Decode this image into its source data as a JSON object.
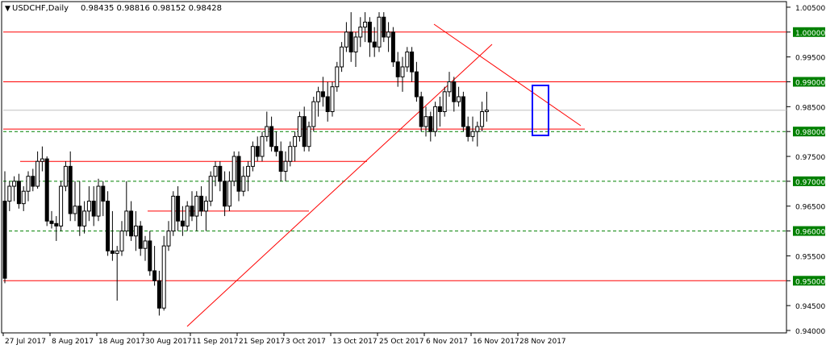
{
  "header": {
    "symbol_timeframe": "USDCHF,Daily",
    "ohlc": "0.98435 0.98816 0.98152 0.98428"
  },
  "colors": {
    "bull_body": "#ffffff",
    "bear_body": "#000000",
    "wick": "#000000",
    "red_line": "#ff0000",
    "green_dash": "#008000",
    "green_tag": "#008000",
    "blue_box": "#0000ff",
    "grid": "#c0c0c0"
  },
  "chart_data": {
    "type": "candlestick",
    "title": "USDCHF,Daily",
    "y_axis_side": "right",
    "ylim": [
      0.94,
      1.0058
    ],
    "y_ticks": [
      {
        "value": 1.005,
        "label": "1.00500"
      },
      {
        "value": 1.0,
        "label": "1.00000",
        "tag": "green"
      },
      {
        "value": 0.995,
        "label": "0.99500"
      },
      {
        "value": 0.99,
        "label": "0.99000",
        "tag": "green"
      },
      {
        "value": 0.985,
        "label": "0.98500"
      },
      {
        "value": 0.98,
        "label": "0.98000",
        "tag": "green"
      },
      {
        "value": 0.975,
        "label": "0.97500"
      },
      {
        "value": 0.97,
        "label": "0.97000",
        "tag": "green"
      },
      {
        "value": 0.965,
        "label": "0.96500"
      },
      {
        "value": 0.96,
        "label": "0.96000",
        "tag": "green"
      },
      {
        "value": 0.955,
        "label": "0.95500"
      },
      {
        "value": 0.95,
        "label": "0.95000",
        "tag": "green"
      },
      {
        "value": 0.945,
        "label": "0.94500"
      },
      {
        "value": 0.94,
        "label": "0.94000"
      }
    ],
    "x_labels": [
      {
        "index": 0,
        "label": "27 Jul 2017"
      },
      {
        "index": 10,
        "label": "8 Aug 2017"
      },
      {
        "index": 20,
        "label": "18 Aug 2017"
      },
      {
        "index": 30,
        "label": "30 Aug 2017"
      },
      {
        "index": 40,
        "label": "11 Sep 2017"
      },
      {
        "index": 50,
        "label": "21 Sep 2017"
      },
      {
        "index": 60,
        "label": "3 Oct 2017"
      },
      {
        "index": 70,
        "label": "13 Oct 2017"
      },
      {
        "index": 80,
        "label": "25 Oct 2017"
      },
      {
        "index": 90,
        "label": "6 Nov 2017"
      },
      {
        "index": 100,
        "label": "16 Nov 2017"
      },
      {
        "index": 110,
        "label": "28 Nov 2017"
      }
    ],
    "candles": [
      [
        0.966,
        0.972,
        0.9495,
        0.9505
      ],
      [
        0.966,
        0.97,
        0.964,
        0.969
      ],
      [
        0.969,
        0.971,
        0.966,
        0.97
      ],
      [
        0.97,
        0.9715,
        0.9645,
        0.9655
      ],
      [
        0.9655,
        0.969,
        0.964,
        0.968
      ],
      [
        0.968,
        0.972,
        0.966,
        0.971
      ],
      [
        0.971,
        0.9725,
        0.968,
        0.969
      ],
      [
        0.969,
        0.976,
        0.9685,
        0.974
      ],
      [
        0.974,
        0.977,
        0.972,
        0.9745
      ],
      [
        0.9745,
        0.975,
        0.961,
        0.962
      ],
      [
        0.962,
        0.964,
        0.9605,
        0.9615
      ],
      [
        0.9615,
        0.963,
        0.958,
        0.961
      ],
      [
        0.961,
        0.97,
        0.96,
        0.969
      ],
      [
        0.969,
        0.974,
        0.968,
        0.973
      ],
      [
        0.973,
        0.976,
        0.962,
        0.9635
      ],
      [
        0.9635,
        0.97,
        0.962,
        0.965
      ],
      [
        0.965,
        0.97,
        0.959,
        0.961
      ],
      [
        0.961,
        0.966,
        0.9595,
        0.964
      ],
      [
        0.964,
        0.969,
        0.962,
        0.966
      ],
      [
        0.966,
        0.969,
        0.961,
        0.963
      ],
      [
        0.963,
        0.9705,
        0.962,
        0.969
      ],
      [
        0.969,
        0.97,
        0.963,
        0.966
      ],
      [
        0.966,
        0.968,
        0.955,
        0.956
      ],
      [
        0.956,
        0.964,
        0.954,
        0.9555
      ],
      [
        0.9555,
        0.957,
        0.946,
        0.956
      ],
      [
        0.956,
        0.962,
        0.955,
        0.96
      ],
      [
        0.96,
        0.97,
        0.959,
        0.964
      ],
      [
        0.964,
        0.966,
        0.958,
        0.959
      ],
      [
        0.959,
        0.964,
        0.956,
        0.961
      ],
      [
        0.961,
        0.962,
        0.955,
        0.9565
      ],
      [
        0.9565,
        0.959,
        0.954,
        0.958
      ],
      [
        0.958,
        0.96,
        0.951,
        0.952
      ],
      [
        0.952,
        0.957,
        0.949,
        0.95
      ],
      [
        0.95,
        0.952,
        0.943,
        0.9445
      ],
      [
        0.9445,
        0.959,
        0.944,
        0.957
      ],
      [
        0.957,
        0.962,
        0.956,
        0.96
      ],
      [
        0.96,
        0.968,
        0.959,
        0.967
      ],
      [
        0.967,
        0.969,
        0.96,
        0.962
      ],
      [
        0.962,
        0.965,
        0.959,
        0.961
      ],
      [
        0.961,
        0.966,
        0.96,
        0.965
      ],
      [
        0.965,
        0.968,
        0.962,
        0.963
      ],
      [
        0.963,
        0.968,
        0.96,
        0.967
      ],
      [
        0.967,
        0.969,
        0.963,
        0.964
      ],
      [
        0.964,
        0.967,
        0.96,
        0.966
      ],
      [
        0.966,
        0.972,
        0.965,
        0.971
      ],
      [
        0.971,
        0.974,
        0.969,
        0.973
      ],
      [
        0.973,
        0.974,
        0.968,
        0.97
      ],
      [
        0.97,
        0.972,
        0.963,
        0.965
      ],
      [
        0.965,
        0.972,
        0.964,
        0.97
      ],
      [
        0.97,
        0.976,
        0.969,
        0.975
      ],
      [
        0.975,
        0.976,
        0.966,
        0.968
      ],
      [
        0.968,
        0.973,
        0.967,
        0.971
      ],
      [
        0.971,
        0.974,
        0.968,
        0.973
      ],
      [
        0.973,
        0.978,
        0.972,
        0.977
      ],
      [
        0.977,
        0.979,
        0.974,
        0.975
      ],
      [
        0.975,
        0.98,
        0.974,
        0.979
      ],
      [
        0.979,
        0.984,
        0.978,
        0.981
      ],
      [
        0.981,
        0.983,
        0.976,
        0.977
      ],
      [
        0.977,
        0.98,
        0.975,
        0.976
      ],
      [
        0.976,
        0.978,
        0.97,
        0.972
      ],
      [
        0.972,
        0.976,
        0.97,
        0.974
      ],
      [
        0.974,
        0.978,
        0.973,
        0.977
      ],
      [
        0.977,
        0.98,
        0.974,
        0.979
      ],
      [
        0.979,
        0.984,
        0.978,
        0.983
      ],
      [
        0.983,
        0.985,
        0.976,
        0.977
      ],
      [
        0.977,
        0.982,
        0.976,
        0.981
      ],
      [
        0.981,
        0.987,
        0.98,
        0.986
      ],
      [
        0.986,
        0.989,
        0.983,
        0.988
      ],
      [
        0.988,
        0.991,
        0.985,
        0.987
      ],
      [
        0.987,
        0.99,
        0.982,
        0.984
      ],
      [
        0.984,
        0.99,
        0.983,
        0.989
      ],
      [
        0.989,
        0.994,
        0.988,
        0.993
      ],
      [
        0.993,
        0.998,
        0.992,
        0.997
      ],
      [
        0.997,
        1.002,
        0.996,
        1.0
      ],
      [
        1.0,
        1.004,
        0.994,
        0.996
      ],
      [
        0.996,
        1.0,
        0.993,
        0.999
      ],
      [
        0.999,
        1.003,
        0.997,
        1.001
      ],
      [
        1.001,
        1.004,
        0.998,
        1.002
      ],
      [
        1.002,
        1.003,
        0.995,
        0.998
      ],
      [
        0.998,
        1.001,
        0.995,
        0.997
      ],
      [
        0.997,
        1.004,
        0.996,
        1.003
      ],
      [
        1.003,
        1.004,
        0.998,
        0.999
      ],
      [
        0.999,
        1.002,
        0.996,
        1.0
      ],
      [
        1.0,
        1.001,
        0.993,
        0.994
      ],
      [
        0.994,
        0.996,
        0.989,
        0.991
      ],
      [
        0.991,
        0.995,
        0.988,
        0.993
      ],
      [
        0.993,
        0.997,
        0.992,
        0.996
      ],
      [
        0.996,
        0.997,
        0.99,
        0.992
      ],
      [
        0.992,
        0.994,
        0.986,
        0.987
      ],
      [
        0.987,
        0.988,
        0.98,
        0.981
      ],
      [
        0.981,
        0.985,
        0.979,
        0.983
      ],
      [
        0.983,
        0.984,
        0.978,
        0.98
      ],
      [
        0.98,
        0.986,
        0.979,
        0.985
      ],
      [
        0.985,
        0.987,
        0.981,
        0.984
      ],
      [
        0.984,
        0.989,
        0.983,
        0.988
      ],
      [
        0.988,
        0.992,
        0.987,
        0.99
      ],
      [
        0.99,
        0.991,
        0.984,
        0.986
      ],
      [
        0.986,
        0.989,
        0.985,
        0.987
      ],
      [
        0.987,
        0.988,
        0.98,
        0.981
      ],
      [
        0.981,
        0.983,
        0.978,
        0.979
      ],
      [
        0.979,
        0.983,
        0.978,
        0.98
      ],
      [
        0.98,
        0.982,
        0.977,
        0.981
      ],
      [
        0.981,
        0.986,
        0.98,
        0.984
      ],
      [
        0.984,
        0.988,
        0.982,
        0.9843
      ]
    ]
  },
  "annotations": {
    "horizontal_red_lines": [
      1.0,
      0.99,
      0.9805,
      0.974,
      0.964,
      0.95
    ],
    "green_dashed_lines": [
      0.98,
      0.97,
      0.96
    ],
    "current_price_line": 0.98428
  }
}
